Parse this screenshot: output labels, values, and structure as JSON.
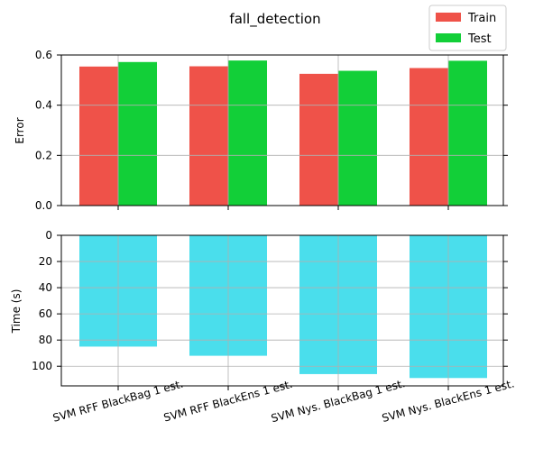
{
  "title": "fall_detection",
  "chart_data": [
    {
      "type": "bar",
      "categories": [
        "SVM RFF BlackBag 1 est.",
        "SVM RFF BlackEns 1 est.",
        "SVM Nys. BlackBag 1 est.",
        "SVM Nys. BlackEns 1 est."
      ],
      "series": [
        {
          "name": "Train",
          "color": "#ef5249",
          "values": [
            0.554,
            0.555,
            0.525,
            0.548
          ]
        },
        {
          "name": "Test",
          "color": "#12cf38",
          "values": [
            0.572,
            0.578,
            0.537,
            0.577
          ]
        }
      ],
      "ylabel": "Error",
      "ylim": [
        0,
        0.6
      ],
      "yticks": [
        "0.0",
        "0.2",
        "0.4",
        "0.6"
      ],
      "grid": true,
      "legend": "top-right"
    },
    {
      "type": "bar",
      "categories": [
        "SVM RFF BlackBag 1 est.",
        "SVM RFF BlackEns 1 est.",
        "SVM Nys. BlackBag 1 est.",
        "SVM Nys. BlackEns 1 est."
      ],
      "series": [
        {
          "color": "#4adeec",
          "values": [
            85,
            92,
            106,
            109
          ]
        }
      ],
      "ylabel": "Time (s)",
      "ylim": [
        0,
        115
      ],
      "y_inverted": true,
      "yticks": [
        "0",
        "20",
        "40",
        "60",
        "80",
        "100"
      ],
      "grid": true
    }
  ]
}
